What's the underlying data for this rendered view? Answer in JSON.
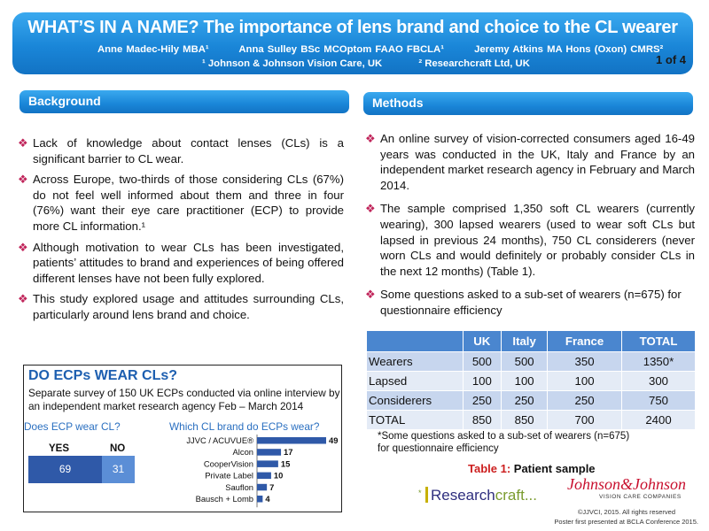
{
  "header": {
    "title": "WHAT’S IN A NAME? The importance of lens brand and choice to the CL wearer",
    "authors": [
      "Anne Madec-Hily MBA¹",
      "Anna Sulley BSc MCOptom FAAO FBCLA¹",
      "Jeremy Atkins MA Hons (Oxon) CMRS²"
    ],
    "affiliations": [
      "¹ Johnson & Johnson Vision Care, UK",
      "² Researchcraft Ltd, UK"
    ],
    "page": "1 of 4"
  },
  "background": {
    "heading": "Background",
    "bullets": [
      "Lack of knowledge about contact lenses (CLs) is a significant barrier to CL wear.",
      "Across Europe, two-thirds of those considering CLs (67%) do not feel well informed about them and three in four (76%) want their eye care practitioner (ECP) to provide more CL information.¹",
      "Although motivation to wear CLs has been investigated, patients’ attitudes to brand and experiences of being offered different lenses have not been fully explored.",
      "This study explored usage and attitudes surrounding CLs, particularly around lens brand and choice."
    ]
  },
  "ecp_box": {
    "title": "DO ECPs WEAR CLs?",
    "subtitle": "Separate survey of 150 UK ECPs conducted via online interview by an independent market research agency Feb – March 2014",
    "q1": "Does ECP wear CL?",
    "q2": "Which CL brand do ECPs wear?",
    "yes_label": "YES",
    "no_label": "NO"
  },
  "chart_data": [
    {
      "type": "bar",
      "title": "Does ECP wear CL?",
      "categories": [
        "YES",
        "NO"
      ],
      "values": [
        69,
        31
      ]
    },
    {
      "type": "bar",
      "title": "Which CL brand do ECPs wear?",
      "orientation": "horizontal",
      "categories": [
        "JJVC / ACUVUE®",
        "Alcon",
        "CooperVision",
        "Private Label",
        "Sauflon",
        "Bausch + Lomb"
      ],
      "values": [
        49,
        17,
        15,
        10,
        7,
        4
      ],
      "xlim": [
        0,
        49
      ]
    }
  ],
  "methods": {
    "heading": "Methods",
    "bullets": [
      "An online survey of vision-corrected consumers aged 16-49 years was conducted in the UK, Italy and France by an independent market research agency in February and March 2014.",
      "The sample comprised 1,350 soft CL wearers (currently wearing), 300 lapsed wearers (used to wear soft CLs but lapsed in previous 24 months), 750 CL considerers (never worn CLs and would definitely or probably consider CLs in the next 12 months) (Table 1).",
      "Some questions asked to a sub-set of wearers (n=675) for questionnaire efficiency"
    ]
  },
  "table": {
    "headers": [
      "",
      "UK",
      "Italy",
      "France",
      "TOTAL"
    ],
    "rows": [
      [
        "Wearers",
        "500",
        "500",
        "350",
        "1350*"
      ],
      [
        "Lapsed",
        "100",
        "100",
        "100",
        "300"
      ],
      [
        "Considerers",
        "250",
        "250",
        "250",
        "750"
      ],
      [
        "TOTAL",
        "850",
        "850",
        "700",
        "2400"
      ]
    ],
    "note": "*Some questions asked to a sub-set of wearers (n=675) for questionnaire efficiency",
    "caption_label": "Table 1:",
    "caption_text": " Patient sample"
  },
  "footer": {
    "rc_logo_a": "Research",
    "rc_logo_b": "craft...",
    "rc_star": "*",
    "jj_logo": "Johnson&Johnson",
    "jj_sub": "VISION CARE COMPANIES",
    "copyright": "©JJVCI, 2015. All rights reserved",
    "presented": "Poster first presented at BCLA Conference 2015."
  },
  "colors": {
    "accent": "#1a86d8",
    "bullet": "#c0245a",
    "yes_bar": "#2f59a8",
    "no_bar": "#5b8ed6",
    "brand_bar": "#2f59a8",
    "caption_red": "#cc1f1f"
  }
}
